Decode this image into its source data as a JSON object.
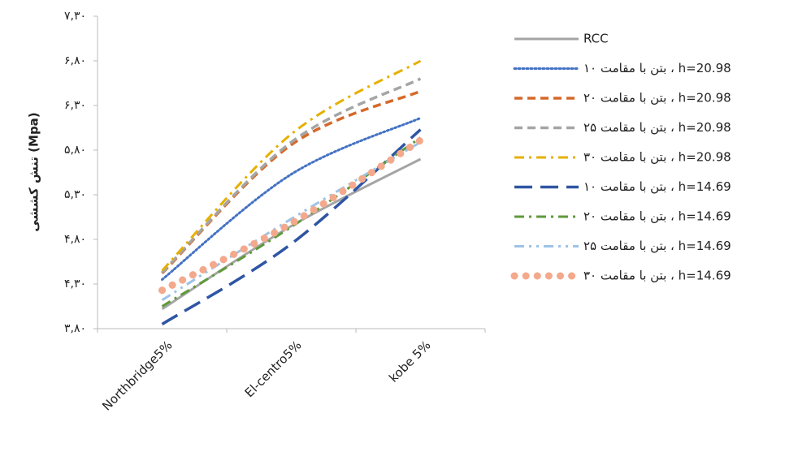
{
  "chart_data": {
    "type": "line",
    "y_label": "تنش کششی (Mpa)",
    "categories": [
      "Northbridge5%",
      "El-centro5%",
      "kobe 5%"
    ],
    "ylim": [
      3.8,
      7.3
    ],
    "yticks": [
      {
        "value": 3.8,
        "label": "۳,۸۰"
      },
      {
        "value": 4.3,
        "label": "۴,۳۰"
      },
      {
        "value": 4.8,
        "label": "۴,۸۰"
      },
      {
        "value": 5.3,
        "label": "۵,۳۰"
      },
      {
        "value": 5.8,
        "label": "۵,۸۰"
      },
      {
        "value": 6.3,
        "label": "۶,۳۰"
      },
      {
        "value": 6.8,
        "label": "۶,۸۰"
      },
      {
        "value": 7.3,
        "label": "۷,۳۰"
      }
    ],
    "series": [
      {
        "name": "RCC",
        "color": "#a5a5a5",
        "dash": "solid",
        "values": [
          4.02,
          4.95,
          5.7
        ]
      },
      {
        "name": "بتن با مقامت ۱۰ ، h=20.98",
        "color": "#4472c4",
        "dash": "dot",
        "values": [
          4.35,
          5.53,
          6.16
        ]
      },
      {
        "name": "بتن با مقامت ۲۰ ، h=20.98",
        "color": "#d5692a",
        "dash": "dash",
        "values": [
          4.42,
          5.86,
          6.46
        ]
      },
      {
        "name": "بتن با مقامت ۲۵ ، h=20.98",
        "color": "#a5a5a5",
        "dash": "dash",
        "values": [
          4.43,
          5.89,
          6.6
        ]
      },
      {
        "name": "بتن با مقامت ۳۰ ، h=20.98",
        "color": "#e6b000",
        "dash": "dashdot",
        "values": [
          4.45,
          5.98,
          6.8
        ]
      },
      {
        "name": "بتن با مقامت ۱۰ ، h=14.69",
        "color": "#2f55a4",
        "dash": "longdash",
        "values": [
          3.85,
          4.75,
          6.03
        ]
      },
      {
        "name": "بتن با مقامت ۲۰ ، h=14.69",
        "color": "#5f9a3a",
        "dash": "dashdot",
        "values": [
          4.05,
          4.94,
          5.94
        ]
      },
      {
        "name": "بتن با مقامت ۲۵ ، h=14.69",
        "color": "#9dc3e6",
        "dash": "dashdotdot",
        "values": [
          4.12,
          5.03,
          5.89
        ]
      },
      {
        "name": "بتن با مقامت ۳۰ ، h=14.69",
        "color": "#f4a98c",
        "dash": "bigdot",
        "values": [
          4.23,
          4.98,
          5.91
        ]
      }
    ]
  }
}
